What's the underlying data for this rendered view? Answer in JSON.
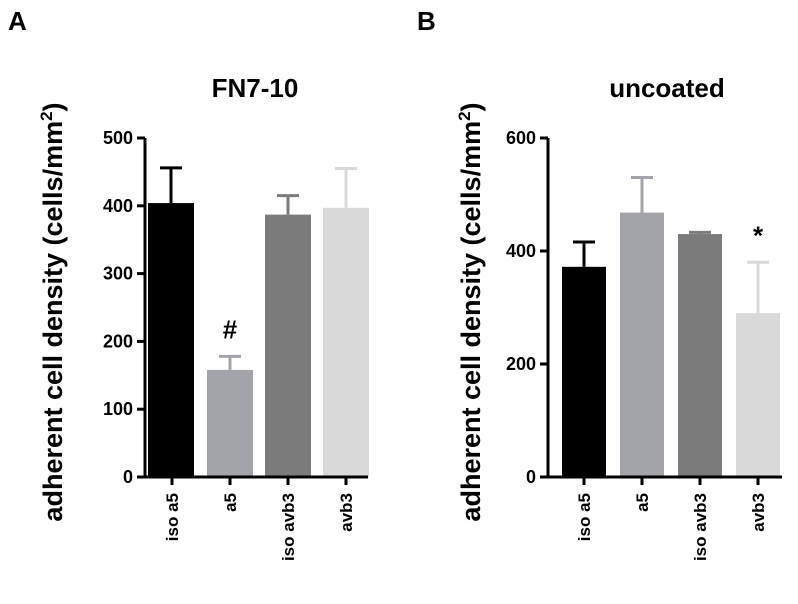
{
  "chart_data": [
    {
      "panel": "A",
      "type": "bar",
      "title": "FN7-10",
      "ylabel": "adherent cell density (cells/mm",
      "ylabel_sup": "2",
      "ylabel_close": ")",
      "ylim": [
        0,
        500
      ],
      "yticks": [
        0,
        100,
        200,
        300,
        400,
        500
      ],
      "categories": [
        "iso a5",
        "a5",
        "iso avb3",
        "avb3"
      ],
      "values": [
        404,
        158,
        387,
        397
      ],
      "errors": [
        52,
        20,
        28,
        58
      ],
      "colors": [
        "#000000",
        "#a3a3aa",
        "#7b7b7b",
        "#d9d9d9"
      ],
      "annotations": [
        {
          "category": "a5",
          "text": "#"
        }
      ],
      "grid": false,
      "legend": "none"
    },
    {
      "panel": "B",
      "type": "bar",
      "title": "uncoated",
      "ylabel": "adherent cell density (cells/mm",
      "ylabel_sup": "2",
      "ylabel_close": ")",
      "ylim": [
        0,
        600
      ],
      "yticks": [
        0,
        200,
        400,
        600
      ],
      "categories": [
        "iso a5",
        "a5",
        "iso avb3",
        "avb3"
      ],
      "values": [
        372,
        468,
        430,
        290
      ],
      "errors": [
        44,
        62,
        3,
        90
      ],
      "colors": [
        "#000000",
        "#a3a3aa",
        "#7b7b7b",
        "#d9d9d9"
      ],
      "annotations": [
        {
          "category": "avb3",
          "text": "*"
        }
      ],
      "grid": false,
      "legend": "none"
    }
  ]
}
